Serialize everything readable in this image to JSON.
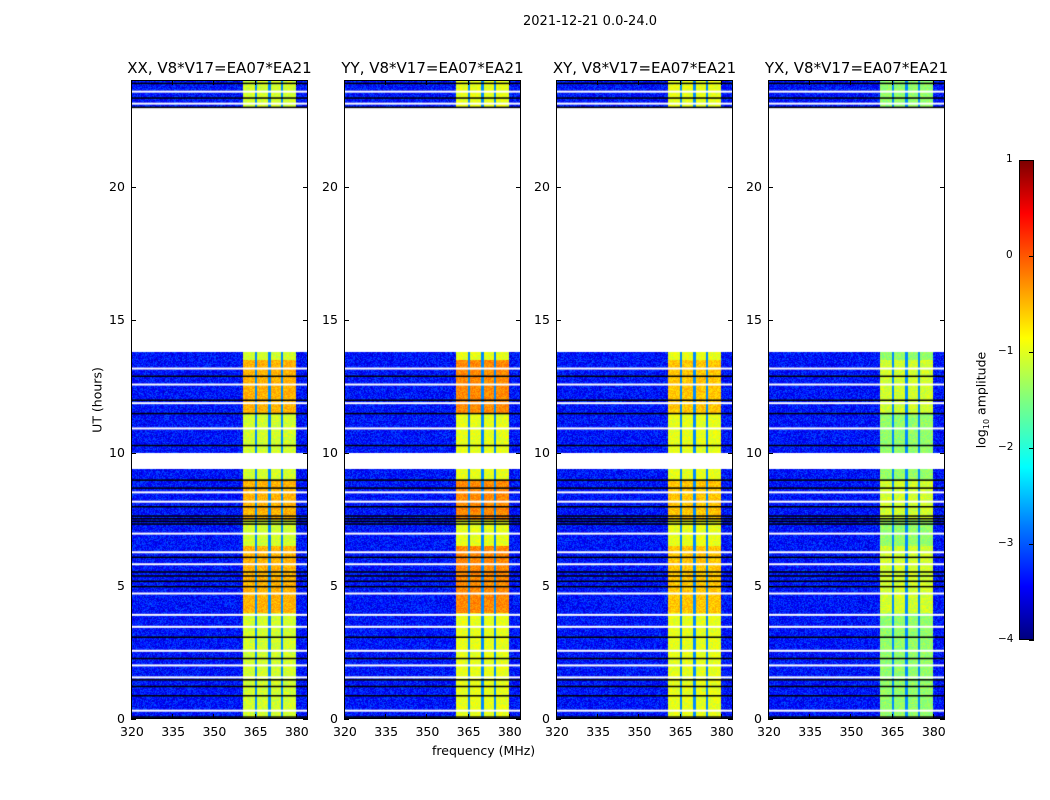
{
  "chart_data": {
    "type": "heatmap",
    "title": "2021-12-21 0.0-24.0",
    "xlabel": "frequency (MHz)",
    "ylabel": "UT (hours)",
    "xlim": [
      320,
      384.4
    ],
    "ylim": [
      0,
      24
    ],
    "xticks": [
      "320",
      "335",
      "350",
      "365",
      "380"
    ],
    "xtick_values": [
      320,
      335,
      350,
      365,
      380
    ],
    "yticks": [
      "0",
      "5",
      "10",
      "15",
      "20"
    ],
    "ytick_values": [
      0,
      5,
      10,
      15,
      20
    ],
    "panels": [
      {
        "title": "XX, V8*V17=EA07*EA21",
        "band_level": -1.1,
        "hot_level": -0.5
      },
      {
        "title": "YY, V8*V17=EA07*EA21",
        "band_level": -1.0,
        "hot_level": -0.3
      },
      {
        "title": "XY, V8*V17=EA07*EA21",
        "band_level": -1.0,
        "hot_level": -0.6
      },
      {
        "title": "YX, V8*V17=EA07*EA21",
        "band_level": -1.4,
        "hot_level": -1.1
      }
    ],
    "data_segments_hours": [
      [
        0,
        9.4
      ],
      [
        10.0,
        13.8
      ],
      [
        23.0,
        24.0
      ]
    ],
    "band_MHz": [
      360.7,
      380.0
    ],
    "subband_edges_MHz": [
      365.3,
      370.1,
      374.8
    ],
    "background_level": -3.3,
    "colorbar": {
      "label": "log10 amplitude",
      "label_main": "log",
      "label_sub": "10",
      "label_rest": " amplitude",
      "range": [
        -4,
        1
      ],
      "ticks": [
        "1",
        "0",
        "−1",
        "−2",
        "−3",
        "−4"
      ],
      "tick_values": [
        1,
        0,
        -1,
        -2,
        -3,
        -4
      ],
      "colormap": "jet"
    }
  }
}
